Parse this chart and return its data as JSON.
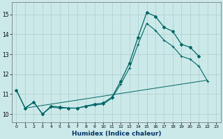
{
  "xlabel": "Humidex (Indice chaleur)",
  "xlim": [
    -0.5,
    23.5
  ],
  "ylim": [
    9.6,
    15.6
  ],
  "yticks": [
    10,
    11,
    12,
    13,
    14,
    15
  ],
  "xticks": [
    0,
    1,
    2,
    3,
    4,
    5,
    6,
    7,
    8,
    9,
    10,
    11,
    12,
    13,
    14,
    15,
    16,
    17,
    18,
    19,
    20,
    21,
    22,
    23
  ],
  "bg_color": "#cce9e9",
  "grid_color": "#b0cccc",
  "line_color": "#006666",
  "curve1_x": [
    0,
    1,
    2,
    3,
    4,
    5,
    6,
    7,
    8,
    9,
    10,
    11,
    12,
    13,
    14,
    15,
    16,
    17,
    18,
    19,
    20,
    21
  ],
  "curve1_y": [
    11.2,
    10.3,
    10.6,
    10.0,
    10.4,
    10.35,
    10.3,
    10.3,
    10.4,
    10.5,
    10.55,
    10.85,
    11.65,
    12.55,
    13.85,
    15.1,
    14.9,
    14.35,
    14.15,
    13.5,
    13.35,
    12.9
  ],
  "curve2_x": [
    0,
    1,
    2,
    3,
    4,
    5,
    6,
    7,
    8,
    9,
    10,
    11,
    12,
    13,
    14,
    15,
    16,
    17,
    18,
    19,
    20,
    21,
    22
  ],
  "curve2_y": [
    11.2,
    10.3,
    10.6,
    10.0,
    10.35,
    10.3,
    10.3,
    10.3,
    10.38,
    10.45,
    10.5,
    10.8,
    11.5,
    12.3,
    13.5,
    14.55,
    14.2,
    13.7,
    13.4,
    12.9,
    12.75,
    12.4,
    11.65
  ],
  "curve3_x": [
    1,
    22
  ],
  "curve3_y": [
    10.3,
    11.7
  ]
}
